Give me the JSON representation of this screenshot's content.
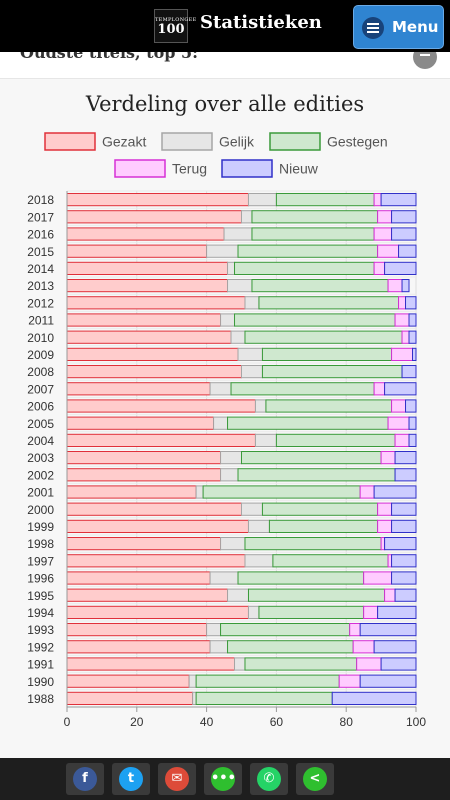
{
  "header": {
    "logo_top": "TEMPLONGEE",
    "logo_num": "100",
    "title": "Statistieken",
    "menu_label": "Menu"
  },
  "section_peek": {
    "title": "Oudste titels, top 5:"
  },
  "chart_data": {
    "type": "bar",
    "orientation": "horizontal",
    "stacked": true,
    "title": "Verdeling over alle edities",
    "xlim": [
      0,
      100
    ],
    "xticks": [
      0,
      20,
      40,
      60,
      80,
      100
    ],
    "legend_position": "top",
    "grid": true,
    "categories": [
      "2018",
      "2017",
      "2016",
      "2015",
      "2014",
      "2013",
      "2012",
      "2011",
      "2010",
      "2009",
      "2008",
      "2007",
      "2006",
      "2005",
      "2004",
      "2003",
      "2002",
      "2001",
      "2000",
      "1999",
      "1998",
      "1997",
      "1996",
      "1995",
      "1994",
      "1993",
      "1992",
      "1991",
      "1990",
      "1988"
    ],
    "series": [
      {
        "name": "Gezakt",
        "fill": "#ffcccc",
        "stroke": "#e0303a",
        "values": [
          52,
          50,
          45,
          40,
          46,
          46,
          51,
          44,
          47,
          49,
          50,
          41,
          54,
          42,
          54,
          44,
          44,
          37,
          50,
          52,
          44,
          51,
          41,
          46,
          52,
          40,
          41,
          48,
          35,
          36
        ]
      },
      {
        "name": "Gelijk",
        "fill": "#e6e6e6",
        "stroke": "#a6a6a6",
        "values": [
          8,
          3,
          8,
          9,
          2,
          7,
          4,
          4,
          4,
          7,
          6,
          6,
          3,
          4,
          6,
          6,
          5,
          2,
          6,
          6,
          7,
          8,
          8,
          6,
          3,
          4,
          5,
          3,
          2,
          1
        ]
      },
      {
        "name": "Gestegen",
        "fill": "#cfe8cf",
        "stroke": "#3a9a3a",
        "values": [
          28,
          36,
          35,
          40,
          40,
          39,
          40,
          46,
          45,
          37,
          40,
          41,
          36,
          46,
          34,
          40,
          45,
          45,
          33,
          31,
          39,
          33,
          36,
          39,
          30,
          37,
          36,
          32,
          41,
          39
        ]
      },
      {
        "name": "Terug",
        "fill": "#ffccff",
        "stroke": "#d630d6",
        "values": [
          2,
          4,
          5,
          6,
          3,
          4,
          2,
          4,
          2,
          6,
          0,
          3,
          4,
          6,
          4,
          4,
          0,
          4,
          4,
          4,
          1,
          1,
          8,
          3,
          4,
          3,
          6,
          7,
          6,
          0
        ]
      },
      {
        "name": "Nieuw",
        "fill": "#ccccff",
        "stroke": "#3030c8",
        "values": [
          10,
          7,
          7,
          5,
          9,
          2,
          3,
          2,
          2,
          1,
          4,
          9,
          3,
          2,
          2,
          6,
          6,
          12,
          7,
          7,
          9,
          7,
          7,
          6,
          11,
          16,
          12,
          10,
          16,
          24
        ]
      }
    ]
  },
  "share": {
    "items": [
      {
        "name": "facebook-icon",
        "glyph": "f",
        "color": "#3b5998"
      },
      {
        "name": "twitter-icon",
        "glyph": "t",
        "color": "#1da1f2"
      },
      {
        "name": "mail-icon",
        "glyph": "✉",
        "color": "#dd4b39"
      },
      {
        "name": "sms-icon",
        "glyph": "•••",
        "color": "#2fbf2f"
      },
      {
        "name": "whatsapp-icon",
        "glyph": "✆",
        "color": "#25d366"
      },
      {
        "name": "share-icon",
        "glyph": "<",
        "color": "#2fbf2f"
      }
    ]
  }
}
